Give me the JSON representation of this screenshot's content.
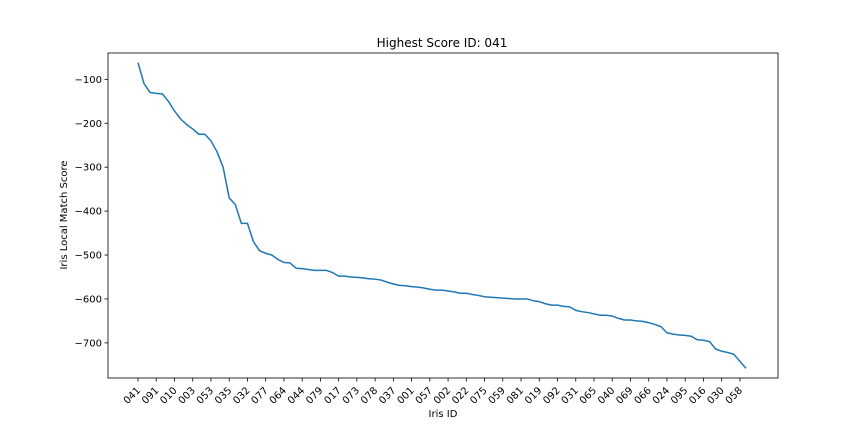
{
  "chart_data": {
    "type": "line",
    "title": "Highest Score ID: 041",
    "xlabel": "Iris ID",
    "ylabel": "Iris Local Match Score",
    "x_tick_labels": [
      "041",
      "091",
      "010",
      "003",
      "053",
      "035",
      "032",
      "077",
      "064",
      "044",
      "079",
      "017",
      "073",
      "078",
      "037",
      "001",
      "057",
      "002",
      "022",
      "075",
      "059",
      "081",
      "019",
      "092",
      "031",
      "065",
      "040",
      "069",
      "066",
      "024",
      "095",
      "016",
      "030",
      "058"
    ],
    "ylim": [
      -780,
      -40
    ],
    "y_ticks": [
      -100,
      -200,
      -300,
      -400,
      -500,
      -600,
      -700
    ],
    "y_tick_labels": [
      "−100",
      "−200",
      "−300",
      "−400",
      "−500",
      "−600",
      "−700"
    ],
    "grid": false,
    "series": [
      {
        "color": "#1f77b4",
        "values": [
          -62,
          -110,
          -130,
          -132,
          -133,
          -150,
          -172,
          -190,
          -203,
          -213,
          -225,
          -225,
          -240,
          -265,
          -300,
          -370,
          -385,
          -428,
          -428,
          -470,
          -490,
          -496,
          -500,
          -510,
          -517,
          -518,
          -530,
          -531,
          -533,
          -535,
          -535,
          -535,
          -540,
          -548,
          -548,
          -550,
          -551,
          -552,
          -554,
          -555,
          -557,
          -562,
          -566,
          -569,
          -570,
          -572,
          -573,
          -575,
          -578,
          -580,
          -580,
          -582,
          -584,
          -587,
          -587,
          -590,
          -592,
          -595,
          -596,
          -597,
          -598,
          -599,
          -600,
          -600,
          -600,
          -604,
          -606,
          -611,
          -614,
          -614,
          -617,
          -618,
          -626,
          -629,
          -631,
          -634,
          -637,
          -637,
          -639,
          -644,
          -648,
          -648,
          -650,
          -651,
          -654,
          -658,
          -663,
          -677,
          -680,
          -682,
          -683,
          -685,
          -693,
          -694,
          -697,
          -714,
          -719,
          -722,
          -726,
          -742,
          -758
        ]
      }
    ]
  }
}
